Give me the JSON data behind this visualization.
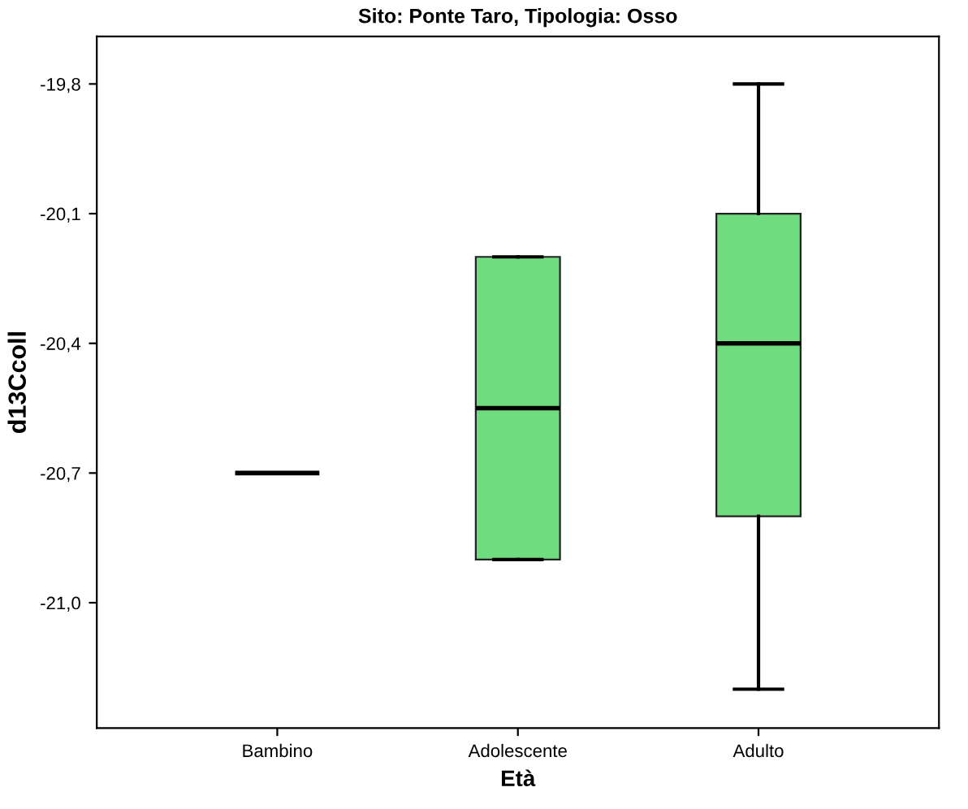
{
  "chart_data": {
    "type": "box",
    "title": "Sito: Ponte Taro, Tipologia: Osso",
    "xlabel": "Età",
    "ylabel": "d13Ccoll",
    "categories": [
      "Bambino",
      "Adolescente",
      "Adulto"
    ],
    "boxes": [
      {
        "low": -20.7,
        "q1": -20.7,
        "median": -20.7,
        "q3": -20.7,
        "high": -20.7
      },
      {
        "low": -20.9,
        "q1": -20.9,
        "median": -20.55,
        "q3": -20.2,
        "high": -20.2
      },
      {
        "low": -21.2,
        "q1": -20.8,
        "median": -20.4,
        "q3": -20.1,
        "high": -19.8
      }
    ],
    "color": "#70dc80",
    "ylim": [
      -21.29,
      -19.69
    ],
    "yticks": [
      {
        "value": -21.0,
        "label": "-21,0"
      },
      {
        "value": -20.7,
        "label": "-20,7"
      },
      {
        "value": -20.4,
        "label": "-20,4"
      },
      {
        "value": -20.1,
        "label": "-20,1"
      },
      {
        "value": -19.8,
        "label": "-19,8"
      }
    ],
    "grid": false
  }
}
